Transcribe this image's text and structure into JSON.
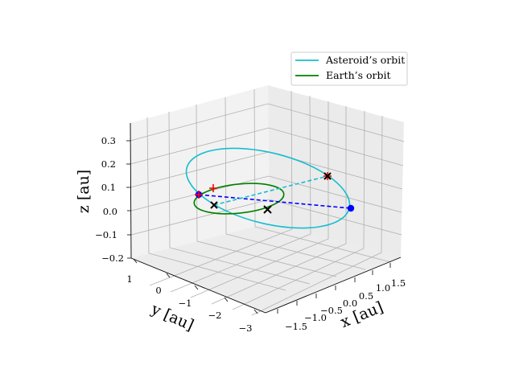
{
  "chart_data": {
    "type": "line",
    "projection": "3d",
    "title": "",
    "xlabel": "x [au]",
    "ylabel": "y [au]",
    "zlabel": "z [au]",
    "x_ticks": [
      "−1.5",
      "−1.0",
      "−0.5",
      "0.0",
      "0.5",
      "1.0",
      "1.5"
    ],
    "y_ticks": [
      "1",
      "0",
      "−1",
      "−2",
      "−3"
    ],
    "z_ticks": [
      "0.3",
      "0.2",
      "0.1",
      "0.0",
      "−0.1",
      "−0.2"
    ],
    "z_range": [
      -0.2,
      0.35
    ],
    "grid": true,
    "legend_position": "upper right",
    "legend": [
      {
        "label": "Asteroid’s orbit",
        "color": "#17becf"
      },
      {
        "label": "Earth’s orbit",
        "color": "#008000"
      }
    ],
    "series": [
      {
        "name": "Asteroid’s orbit",
        "kind": "ellipse",
        "color": "#17becf"
      },
      {
        "name": "Earth’s orbit",
        "kind": "ellipse",
        "color": "#008000"
      }
    ],
    "markers": [
      {
        "kind": "dot",
        "color": "#0000ff",
        "label": "blue dot left"
      },
      {
        "kind": "dot",
        "color": "#0000ff",
        "label": "blue dot right"
      },
      {
        "kind": "plus",
        "color": "#ff0000",
        "label": "red plus left"
      },
      {
        "kind": "plus",
        "color": "#ff0000",
        "label": "red plus right"
      },
      {
        "kind": "cross",
        "color": "#000000",
        "label": "black cross 1"
      },
      {
        "kind": "cross",
        "color": "#000000",
        "label": "black cross 2"
      },
      {
        "kind": "cross",
        "color": "#000000",
        "label": "black cross 3"
      }
    ],
    "lines": [
      {
        "kind": "dashed",
        "color": "#0000ff"
      },
      {
        "kind": "dashed",
        "color": "#17becf"
      }
    ]
  }
}
